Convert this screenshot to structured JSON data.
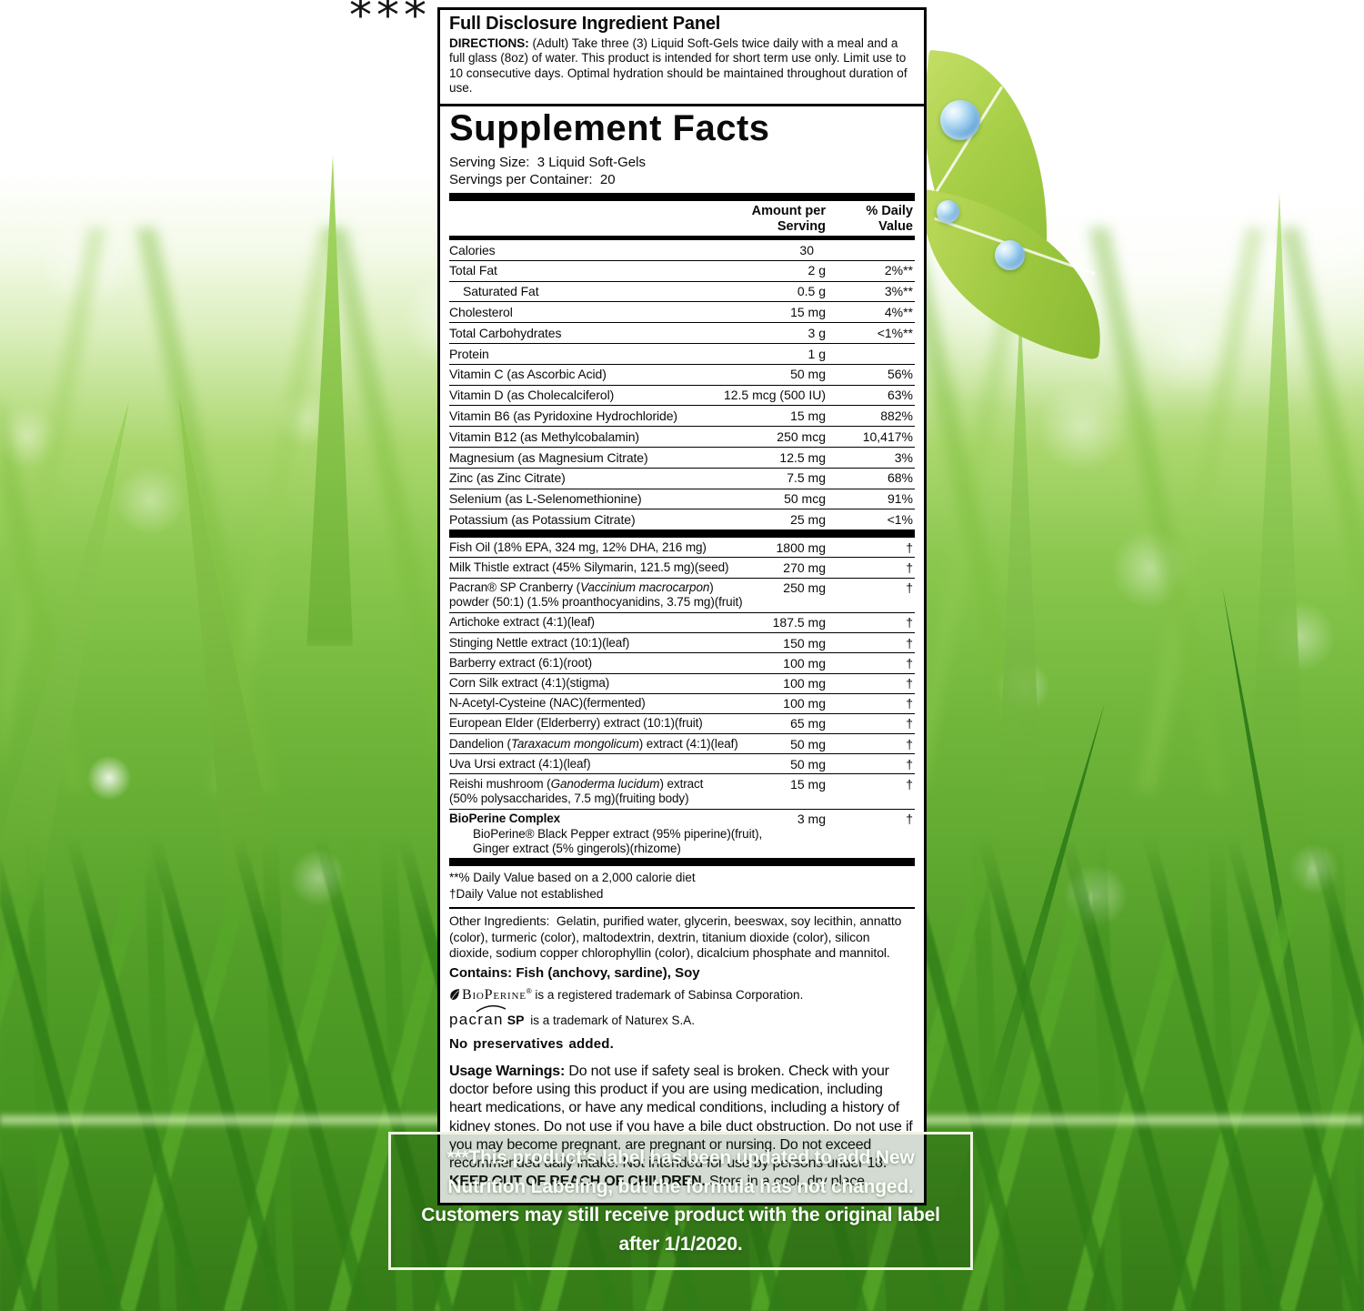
{
  "note_marker": "***",
  "label": {
    "header": {
      "title": "Full Disclosure Ingredient Panel",
      "directions_label": "DIRECTIONS:",
      "directions_text": " (Adult) Take three (3) Liquid Soft-Gels twice daily with a meal and a full glass (8oz) of water. This product is intended for short term use only. Limit use to 10 consecutive days. Optimal hydration should be maintained throughout duration of use."
    },
    "facts": {
      "title": "Supplement Facts",
      "serving_size": "Serving Size:  3 Liquid Soft-Gels",
      "servings_per_container": "Servings per Container:  20",
      "col_amount": "Amount per Serving",
      "col_dv": "% Daily Value",
      "nutrients": [
        {
          "name": [
            "Calories"
          ],
          "amount": "30",
          "dv": "",
          "cal": true
        },
        {
          "name": [
            "Total Fat"
          ],
          "amount": "2 g",
          "dv": "2%**"
        },
        {
          "name": [
            "Saturated Fat"
          ],
          "amount": "0.5 g",
          "dv": "3%**",
          "indent": true
        },
        {
          "name": [
            "Cholesterol"
          ],
          "amount": "15 mg",
          "dv": "4%**"
        },
        {
          "name": [
            "Total Carbohydrates"
          ],
          "amount": "3 g",
          "dv": "<1%**"
        },
        {
          "name": [
            "Protein"
          ],
          "amount": "1 g",
          "dv": ""
        },
        {
          "name": [
            "Vitamin C (as Ascorbic Acid)"
          ],
          "amount": "50 mg",
          "dv": "56%"
        },
        {
          "name": [
            "Vitamin D (as Cholecalciferol)"
          ],
          "amount": "12.5 mcg (500 IU)",
          "dv": "63%"
        },
        {
          "name": [
            "Vitamin B6 (as Pyridoxine Hydrochloride)"
          ],
          "amount": "15 mg",
          "dv": "882%"
        },
        {
          "name": [
            "Vitamin B12 (as Methylcobalamin)"
          ],
          "amount": "250 mcg",
          "dv": "10,417%"
        },
        {
          "name": [
            "Magnesium (as Magnesium Citrate)"
          ],
          "amount": "12.5 mg",
          "dv": "3%"
        },
        {
          "name": [
            "Zinc (as Zinc Citrate)"
          ],
          "amount": "7.5 mg",
          "dv": "68%"
        },
        {
          "name": [
            "Selenium (as L-Selenomethionine)"
          ],
          "amount": "50 mcg",
          "dv": "91%"
        },
        {
          "name": [
            "Potassium (as Potassium Citrate)"
          ],
          "amount": "25 mg",
          "dv": "<1%"
        }
      ],
      "botanicals": [
        {
          "name": [
            "Fish Oil (18% EPA, 324 mg, 12% DHA, 216 mg)"
          ],
          "amount": "1800 mg",
          "dv": "†",
          "small": true
        },
        {
          "name": [
            "Milk Thistle extract (45% Silymarin, 121.5 mg)(seed)"
          ],
          "amount": "270 mg",
          "dv": "†",
          "small": true
        },
        {
          "name": [
            "Pacran® SP Cranberry (",
            {
              "i": "Vaccinium macrocarpon"
            },
            ") powder (50:1) (1.5% proanthocyanidins, 3.75 mg)(fruit)"
          ],
          "amount": "250 mg",
          "dv": "†",
          "small": true
        },
        {
          "name": [
            "Artichoke extract (4:1)(leaf)"
          ],
          "amount": "187.5 mg",
          "dv": "†",
          "small": true
        },
        {
          "name": [
            "Stinging Nettle extract (10:1)(leaf)"
          ],
          "amount": "150 mg",
          "dv": "†",
          "small": true
        },
        {
          "name": [
            "Barberry extract (6:1)(root)"
          ],
          "amount": "100 mg",
          "dv": "†",
          "small": true
        },
        {
          "name": [
            "Corn Silk extract (4:1)(stigma)"
          ],
          "amount": "100 mg",
          "dv": "†",
          "small": true
        },
        {
          "name": [
            "N-Acetyl-Cysteine (NAC)(fermented)"
          ],
          "amount": "100 mg",
          "dv": "†",
          "small": true
        },
        {
          "name": [
            "European Elder (Elderberry) extract (10:1)(fruit)"
          ],
          "amount": "65 mg",
          "dv": "†",
          "small": true
        },
        {
          "name": [
            "Dandelion (",
            {
              "i": "Taraxacum mongolicum"
            },
            ") extract (4:1)(leaf)"
          ],
          "amount": "50 mg",
          "dv": "†",
          "small": true
        },
        {
          "name": [
            "Uva Ursi extract (4:1)(leaf)"
          ],
          "amount": "50 mg",
          "dv": "†",
          "small": true
        },
        {
          "name": [
            "Reishi mushroom (",
            {
              "i": "Ganoderma lucidum"
            },
            ") extract",
            {
              "br": true
            },
            "(50% polysaccharides, 7.5 mg)(fruiting body)"
          ],
          "amount": "15 mg",
          "dv": "†",
          "small": true
        },
        {
          "name": [
            "BioPerine Complex"
          ],
          "amount": "3 mg",
          "dv": "†",
          "bold": true,
          "small": true,
          "subs": [
            "BioPerine® Black Pepper extract (95% piperine)(fruit),",
            "Ginger extract (5% gingerols)(rhizome)"
          ]
        }
      ],
      "footnotes": [
        "**% Daily Value based on a 2,000 calorie diet",
        "†Daily Value not established"
      ],
      "other_ingredients": "Other Ingredients:  Gelatin, purified water, glycerin, beeswax, soy lecithin, annatto (color), turmeric (color), maltodextrin, dextrin, titanium dioxide (color), silicon dioxide, sodium copper chlorophyllin (color), dicalcium phosphate and mannitol.",
      "contains": "Contains: Fish (anchovy, sardine), Soy",
      "bioperine_tm": {
        "brand": "BioPerine",
        "reg": "®",
        "rest": " is a registered trademark of Sabinsa Corporation."
      },
      "pacran_tm": {
        "brand": "pacran",
        "sp": "SP",
        "rest": " is a trademark of Naturex S.A."
      },
      "no_preservatives": "No preservatives added.",
      "usage_warnings": [
        {
          "b": true,
          "t": "Usage Warnings: "
        },
        {
          "t": "Do not use if safety seal is broken. Check with your doctor before using this product if you are using medication, including heart medications, or have any medical conditions, including a history of kidney stones. Do not use if you have a bile duct obstruction. Do not use if you may become pregnant, are pregnant or nursing. Do not exceed recommended daily intake. Not intended for use by persons under 18. "
        },
        {
          "b": true,
          "t": "KEEP OUT OF REACH OF CHILDREN."
        },
        {
          "t": " Store in a cool, dry place."
        }
      ]
    }
  },
  "footer_note": {
    "text": "***This product's label has been updated to add New Nutrition Labeling, but the formula has not changed. Customers may still receive product with the original label after 1/1/2020."
  }
}
